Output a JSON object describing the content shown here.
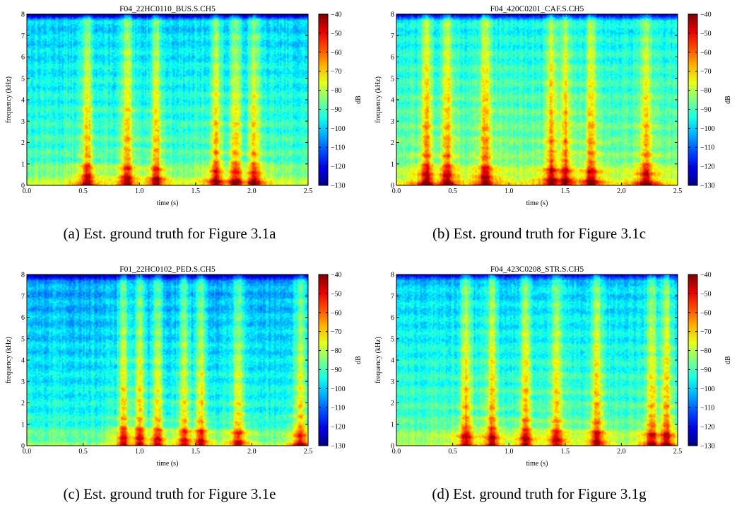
{
  "chart_data": [
    {
      "type": "heatmap",
      "title": "F04_22HC0110_BUS.S.CH5",
      "xlabel": "time (s)",
      "ylabel": "frequency (kHz)",
      "colorbar_label": "dB",
      "xlim": [
        0,
        2.5
      ],
      "ylim": [
        0,
        8
      ],
      "clim": [
        -130,
        -40
      ],
      "xticks": [
        "0.0",
        "0.5",
        "1.0",
        "1.5",
        "2.0",
        "2.5"
      ],
      "yticks": [
        "0",
        "1",
        "2",
        "3",
        "4",
        "5",
        "6",
        "7",
        "8"
      ],
      "cticks": [
        "−40",
        "−50",
        "−60",
        "−70",
        "−80",
        "−90",
        "−100",
        "−110",
        "−120",
        "−130"
      ],
      "caption": "(a) Est. ground truth for Figure 3.1a",
      "colormap": "jet",
      "energy_bursts_s": [
        0.54,
        0.89,
        1.15,
        1.68,
        1.86,
        2.02
      ],
      "noise_floor_db": -88
    },
    {
      "type": "heatmap",
      "title": "F04_420C0201_CAF.S.CH5",
      "xlabel": "time (s)",
      "ylabel": "frequency (kHz)",
      "colorbar_label": "dB",
      "xlim": [
        0,
        2.5
      ],
      "ylim": [
        0,
        8
      ],
      "clim": [
        -130,
        -40
      ],
      "xticks": [
        "0.0",
        "0.5",
        "1.0",
        "1.5",
        "2.0",
        "2.5"
      ],
      "yticks": [
        "0",
        "1",
        "2",
        "3",
        "4",
        "5",
        "6",
        "7",
        "8"
      ],
      "cticks": [
        "−40",
        "−50",
        "−60",
        "−70",
        "−80",
        "−90",
        "−100",
        "−110",
        "−120",
        "−130"
      ],
      "caption": "(b) Est. ground truth for Figure 3.1c",
      "colormap": "jet",
      "energy_bursts_s": [
        0.27,
        0.45,
        0.79,
        1.38,
        1.5,
        1.73,
        2.22
      ],
      "noise_floor_db": -84
    },
    {
      "type": "heatmap",
      "title": "F01_22HC0102_PED.S.CH5",
      "xlabel": "time (s)",
      "ylabel": "frequency (kHz)",
      "colorbar_label": "dB",
      "xlim": [
        0,
        2.5
      ],
      "ylim": [
        0,
        8
      ],
      "clim": [
        -130,
        -40
      ],
      "xticks": [
        "0.0",
        "0.5",
        "1.0",
        "1.5",
        "2.0",
        "2.5"
      ],
      "yticks": [
        "0",
        "1",
        "2",
        "3",
        "4",
        "5",
        "6",
        "7",
        "8"
      ],
      "cticks": [
        "−40",
        "−50",
        "−60",
        "−70",
        "−80",
        "−90",
        "−100",
        "−110",
        "−120",
        "−130"
      ],
      "caption": "(c) Est. ground truth for Figure 3.1e",
      "colormap": "jet",
      "energy_bursts_s": [
        0.86,
        1.0,
        1.16,
        1.4,
        1.55,
        1.88,
        2.43
      ],
      "noise_floor_db": -92
    },
    {
      "type": "heatmap",
      "title": "F04_423C0208_STR.S.CH5",
      "xlabel": "time (s)",
      "ylabel": "frequency (kHz)",
      "colorbar_label": "dB",
      "xlim": [
        0,
        2.5
      ],
      "ylim": [
        0,
        8
      ],
      "clim": [
        -130,
        -40
      ],
      "xticks": [
        "0.0",
        "0.5",
        "1.0",
        "1.5",
        "2.0",
        "2.5"
      ],
      "yticks": [
        "0",
        "1",
        "2",
        "3",
        "4",
        "5",
        "6",
        "7",
        "8"
      ],
      "cticks": [
        "−40",
        "−50",
        "−60",
        "−70",
        "−80",
        "−90",
        "−100",
        "−110",
        "−120",
        "−130"
      ],
      "caption": "(d) Est. ground truth for Figure 3.1g",
      "colormap": "jet",
      "energy_bursts_s": [
        0.62,
        0.85,
        1.15,
        1.42,
        1.78,
        2.27,
        2.4
      ],
      "noise_floor_db": -88
    }
  ]
}
